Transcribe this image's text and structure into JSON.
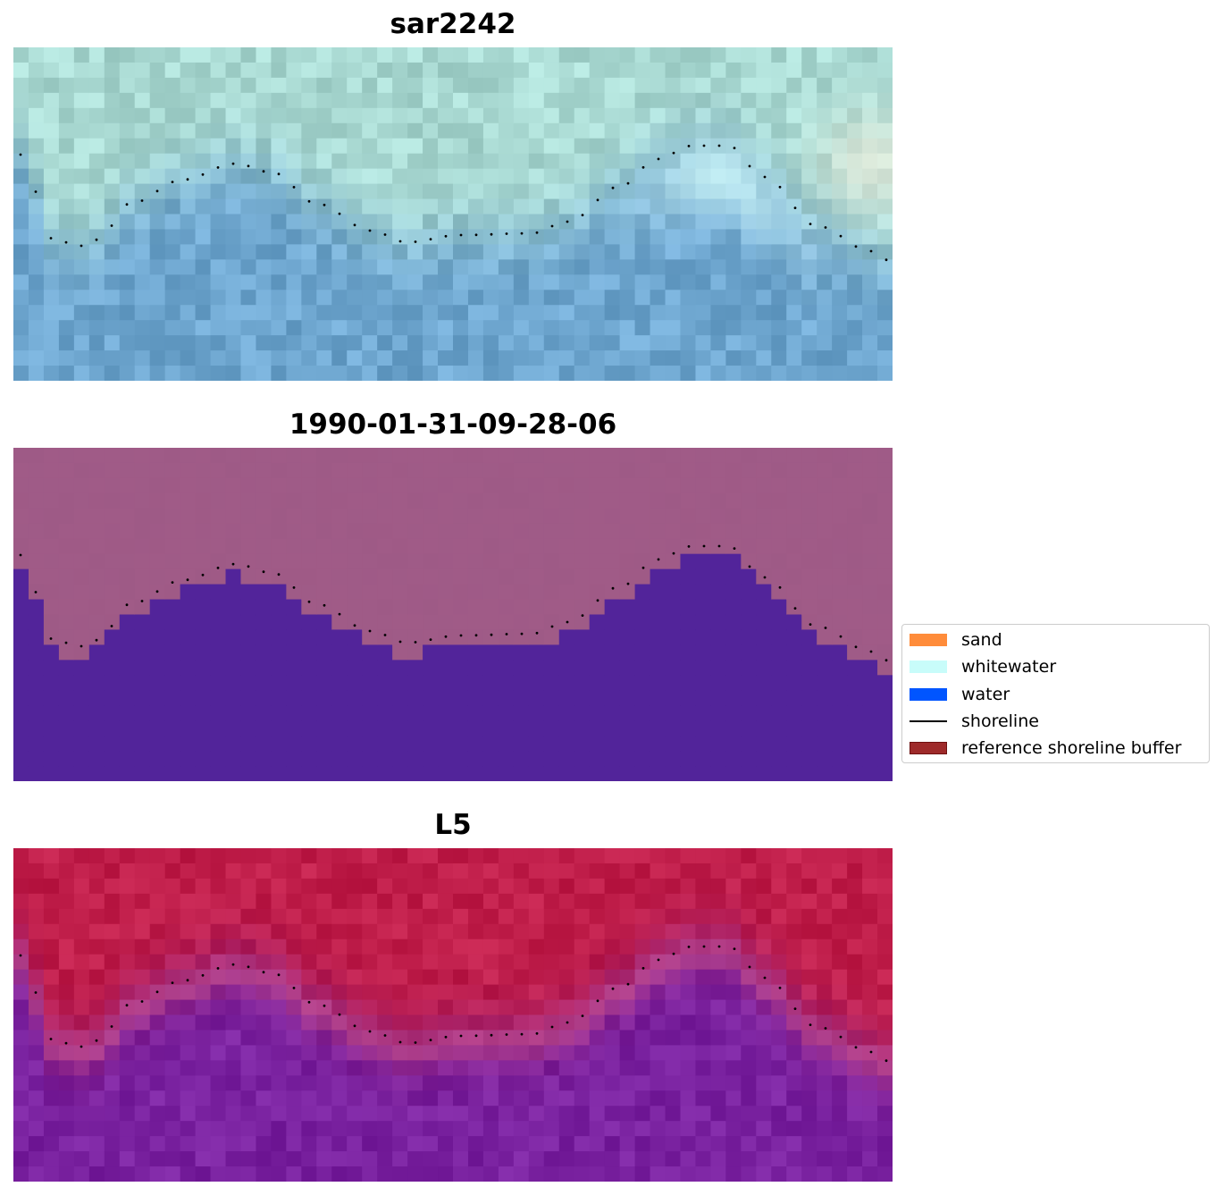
{
  "panels": [
    {
      "title": "sar2242",
      "kind": "rgb"
    },
    {
      "title": "1990-01-31-09-28-06",
      "kind": "classified"
    },
    {
      "title": "L5",
      "kind": "index"
    }
  ],
  "legend": {
    "items": [
      {
        "label": "sand",
        "color": "#ff8c3a",
        "type": "patch"
      },
      {
        "label": "whitewater",
        "color": "#c8fcfa",
        "type": "patch"
      },
      {
        "label": "water",
        "color": "#0055ff",
        "type": "patch"
      },
      {
        "label": "shoreline",
        "color": "#000000",
        "type": "line"
      },
      {
        "label": "reference shoreline buffer",
        "color": "#9e2a2a",
        "type": "patch-edged"
      }
    ]
  },
  "colors": {
    "rgb_land": "#a9d9d2",
    "rgb_water": "#6ea6cf",
    "classified_land": "#9e5a86",
    "classified_water": "#52249a",
    "index_land": "#c01e4a",
    "index_water": "#7a22a0"
  }
}
